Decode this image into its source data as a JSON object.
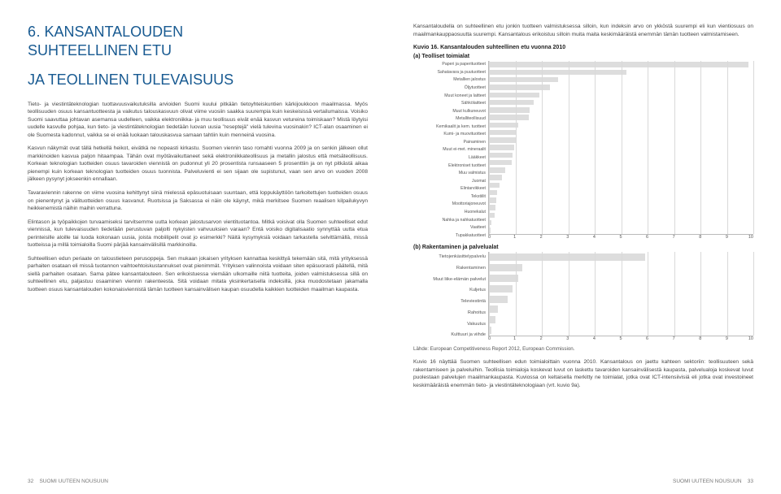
{
  "left": {
    "chapterNumber": "6.",
    "chapterTitleLine1": "KANSANTALOUDEN",
    "chapterTitleLine2": "SUHTEELLINEN ETU",
    "chapterTitleLine3": "JA TEOLLINEN TULEVAISUUS",
    "paragraphs": [
      "Tieto- ja viestintäteknologian tuottavuusvaikutuksilla arvioiden Suomi kuului pitkään tietoyhteiskuntien kärkijoukkoon maailmassa. Myös teollisuuden osuus kansantuotteesta ja vaikutus talouskasvuun olivat viime vuosiin saakka suurempia kuin keskeisissä vertailumaissa. Voisiko Suomi saavuttaa johtavan asemansa uudelleen, vaikka elektroniikka- ja muu teollisuus eivät enää kasvun vetureina toimiskaan? Mistä löytyisi uudelle kasvulle pohjaa, kun tieto- ja viestintäteknologian tiedetään luovan uusia \"reseptejä\" vielä tulevina vuosinakin? ICT-alan osaaminen ei ole Suomesta kadonnut, vaikka se ei enää luokaan talouskasvua samaan tahtiin kuin menneinä vuosina.",
      "Kasvun näkymät ovat tällä hetkellä heikot, eivätkä ne nopeasti kirkastu. Suomen viennin taso romahti vuonna 2009 ja on senkin jälkeen ollut markkinoiden kasvua paljon hitaampaa. Tähän ovat myötävaikuttaneet sekä elektroniikkateollisuus ja metallin jalostus että metsäteollisuus. Korkean teknologian tuotteiden osuus tavaroiden viennistä on pudonnut yli 20 prosentista runsaaseen 5 prosenttiin ja on nyt pitkästä aikaa pienempi kuin korkean teknologian tuotteiden osuus tuonnista. Palveluvienti ei sen sijaan ole supistunut, vaan sen arvo on vuoden 2008 jälkeen pysynyt jokseenkin ennallaan.",
      "Tavaraviennin rakenne on viime vuosina kehittynyt siinä mielessä epäsuotuisaan suuntaan, että loppukäyttöön tarkoitettujen tuotteiden osuus on pienentynyt ja välituotteiden osuus kasvanut. Ruotsissa ja Saksassa ei näin ole käynyt, mikä merkitsee Suomen reaalisen kilpailukyvyn heikkenemistä näihin maihin verrattuna.",
      "Elintason ja työpaikkojen turvaamiseksi tarvitsemme uutta korkean jalostusarvon vientituotantoa. Mitkä voisivat olla Suomen suhteelliset edut viennissä, kun tulevaisuuden tiedetään perustuvan paljolti nykyisten vahvuuksien varaan? Entä voisiko digitalisaatio synnyttää uutta etua perinteisille aloille tai luoda kokonaan uusia, joista mobiilipelit ovat jo esimerkki? Näitä kysymyksiä voidaan tarkastella selvittämällä, missä tuotteissa ja millä toimialoilla Suomi pärjää kansainvälisillä markkinoilla.",
      "Suhteellisen edun periaate on taloustieteen perusoppeja. Sen mukaan jokaisen yrityksen kannattaa keskittyä tekemään sitä, mitä yrityksessä parhaiten osataan eli missä tuotannon vaihtoehtoiskustannukset ovat pienimmät. Yrityksen valinnoista voidaan siten epäsuorasti päätellä, mitä siellä parhaiten osataan. Sama pätee kansantalouteen. Sen erikoistuessa viemään ulkomaille niitä tuotteita, joiden valmistuksessa sillä on suhteellinen etu, paljastuu osaaminen viennin rakenteesta. Sitä voidaan mitata yksinkertaisella indeksillä, joka muodostetaan jakamalla tuotteen osuus kansantalouden kokonaisviennistä tämän tuotteen kansainvälisen kaupan osuudella kaikkien tuotteiden maailman kaupasta."
    ],
    "footerPage": "32",
    "footerText": "SUOMI UUTEEN NOUSUUN"
  },
  "right": {
    "intro": "Kansantaloudella on suhteellinen etu jonkin tuotteen valmistuksessa silloin, kun indeksin arvo on ykköstä suurempi eli kun vientiosuus on maailmankauppaosuutta suurempi. Kansantalous erikoistuu silloin muita maita keskimääräistä enemmän tämän tuotteen valmistamiseen.",
    "kuvioCaption": "Kuvio 16. Kansantalouden suhteellinen etu vuonna 2010",
    "panelA": "(a) Teolliset toimialat",
    "panelB": "(b) Rakentaminen ja palvelualat",
    "chartA": {
      "labels": [
        "Paperi ja paperituotteet",
        "Sahatavara ja puutuotteet",
        "Metallien jalostus",
        "Öljytuotteet",
        "Muut koneet ja laitteet",
        "Sähkölaitteet",
        "Muut kulkuneuvot",
        "Metalliteollisuud",
        "Kemikaalit ja kem. tuotteet",
        "Kumi- ja muovituotteet",
        "Painaminen",
        "Muut ei-met. mineraalit",
        "Lääkkeet",
        "Elektroniset tuotteet",
        "Muu valmistus",
        "Juomat",
        "Elintarvikkeet",
        "Tekstiilit",
        "Moottoriajoneuvot",
        "Huonekalut",
        "Nahka ja nahkatuotteet",
        "Vaatteet",
        "Tupakkatuotteet"
      ],
      "values": [
        9.8,
        5.2,
        2.6,
        2.3,
        1.9,
        1.7,
        1.55,
        1.5,
        1.1,
        1.05,
        1.0,
        0.95,
        0.9,
        0.85,
        0.6,
        0.5,
        0.4,
        0.3,
        0.28,
        0.26,
        0.2,
        0.1,
        0.05
      ],
      "xmax": 10,
      "xtickStep": 1,
      "barColor": "#dddddd",
      "gridColor": "#d9d9d9",
      "bg": "#ffffff",
      "labelFontSize": 5.2,
      "tickFontSize": 5.5
    },
    "chartB": {
      "labels": [
        "Tietojenkäsittelypalvelu",
        "Rakentaminen",
        "Muut liike-elämän palvelut",
        "Kuljetus",
        "Televiestintä",
        "Rahoitus",
        "Vakuutus",
        "Kulttuuri ja viihde"
      ],
      "values": [
        5.9,
        1.25,
        1.1,
        0.9,
        0.7,
        0.35,
        0.25,
        0.1
      ],
      "xmax": 10,
      "xtickStep": 1,
      "barColor": "#dddddd",
      "gridColor": "#d9d9d9",
      "bg": "#ffffff",
      "labelFontSize": 5.6,
      "tickFontSize": 5.5
    },
    "source": "Lähde: European Competitiveness Report 2012, European Commission.",
    "after": "Kuvio 16 näyttää Suomen suhteellisen edun toimialoittain vuonna 2010. Kansantalous on jaettu kahteen sektoriin: teollisuuteen sekä rakentamiseen ja palveluihin. Teollisia toimialoja koskevat luvut on laskettu tavaroiden kansainvälisestä kaupasta, palvelualoja koskevat luvut puolestaan palvelujen maailmankaupasta. Kuviossa on keltaisella merkitty ne toimialat, jotka ovat ICT-intensiivisiä eli jotka ovat investoineet keskimääräistä enemmän tieto- ja viestintäteknologiaan (vrt. kuvio 9a).",
    "footerText": "SUOMI UUTEEN NOUSUUN",
    "footerPage": "33"
  }
}
